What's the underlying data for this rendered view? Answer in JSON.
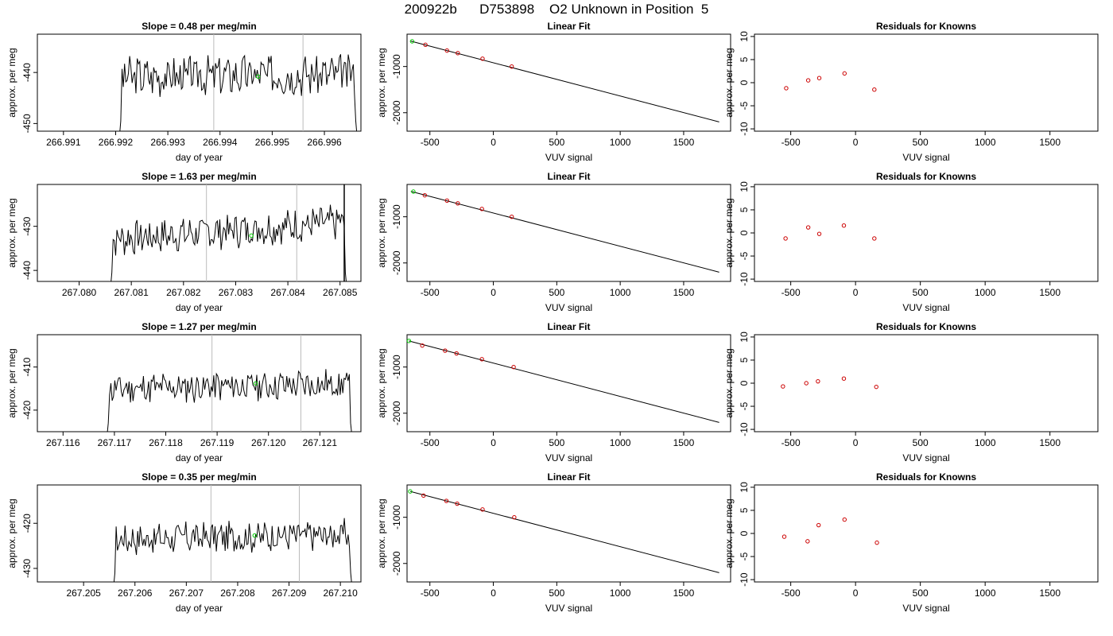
{
  "title": "200922b      D753898    O2 Unknown in Position  5",
  "colors": {
    "line": "#000000",
    "green": "#00cc00",
    "red": "#cc0000",
    "marker": "#bbbbbb"
  },
  "chart_data": [
    {
      "row": 0,
      "time_series": {
        "type": "line",
        "title": "Slope =  0.48  per meg/min",
        "xlabel": "day of year",
        "ylabel": "approx. per meg",
        "xlim": [
          266.9905,
          266.9967
        ],
        "ylim": [
          -451.5,
          -432.5
        ],
        "x_ticks": [
          "266.991",
          "266.992",
          "266.993",
          "266.994",
          "266.995",
          "266.996"
        ],
        "y_ticks": [
          "-450",
          "-440"
        ],
        "start": 266.99205,
        "end": 266.99665,
        "base": -440.5,
        "amp": 3.5,
        "trend": 0.5,
        "seed": 3,
        "markers": [
          266.99388,
          266.99559
        ],
        "mean_point": [
          266.99473,
          -440.8
        ]
      },
      "linear_fit": {
        "type": "scatter",
        "title": "Linear Fit",
        "xlabel": "VUV signal",
        "ylabel": "approx. per meg",
        "xlim": [
          -680,
          1870
        ],
        "ylim": [
          -2400,
          -300
        ],
        "x_ticks": [
          "-500",
          "0",
          "500",
          "1000",
          "1500"
        ],
        "y_ticks": [
          "-1000",
          "-2000"
        ],
        "line": [
          [
            -650,
            -450
          ],
          [
            1780,
            -2200
          ]
        ],
        "unknown": [
          -640,
          -455
        ],
        "knowns": [
          [
            -535,
            -530
          ],
          [
            -365,
            -655
          ],
          [
            -280,
            -710
          ],
          [
            -85,
            -830
          ],
          [
            145,
            -1000
          ]
        ]
      },
      "residuals": {
        "type": "scatter",
        "title": "Residuals for Knowns",
        "xlabel": "VUV signal",
        "ylabel": "approx. per meg",
        "xlim": [
          -780,
          1870
        ],
        "ylim": [
          -10.5,
          10.5
        ],
        "x_ticks": [
          "-500",
          "0",
          "500",
          "1000",
          "1500"
        ],
        "y_ticks": [
          "-10",
          "-5",
          "0",
          "5",
          "10"
        ],
        "points": [
          [
            -535,
            -1.2
          ],
          [
            -365,
            0.5
          ],
          [
            -280,
            1.0
          ],
          [
            -85,
            2.0
          ],
          [
            145,
            -1.5
          ]
        ]
      }
    },
    {
      "row": 1,
      "time_series": {
        "type": "line",
        "title": "Slope =  1.63  per meg/min",
        "xlabel": "day of year",
        "ylabel": "approx. per meg",
        "xlim": [
          267.0792,
          267.0854
        ],
        "ylim": [
          -442.5,
          -420.5
        ],
        "x_ticks": [
          "267.080",
          "267.081",
          "267.082",
          "267.083",
          "267.084",
          "267.085"
        ],
        "y_ticks": [
          "-440",
          "-430"
        ],
        "start": 267.08058,
        "end": 267.08515,
        "base": -431.0,
        "amp": 3.5,
        "trend": 4.0,
        "seed": 7,
        "markers": [
          267.08244,
          267.08417
        ],
        "mean_point": [
          267.0833,
          -432.1
        ],
        "spike": [
          267.08508,
          -420.5
        ]
      },
      "linear_fit": {
        "type": "scatter",
        "title": "Linear Fit",
        "xlabel": "VUV signal",
        "ylabel": "approx. per meg",
        "xlim": [
          -680,
          1870
        ],
        "ylim": [
          -2400,
          -300
        ],
        "x_ticks": [
          "-500",
          "0",
          "500",
          "1000",
          "1500"
        ],
        "y_ticks": [
          "-1000",
          "-2000"
        ],
        "line": [
          [
            -650,
            -450
          ],
          [
            1780,
            -2200
          ]
        ],
        "unknown": [
          -630,
          -455
        ],
        "knowns": [
          [
            -540,
            -535
          ],
          [
            -365,
            -650
          ],
          [
            -280,
            -710
          ],
          [
            -90,
            -830
          ],
          [
            145,
            -1000
          ]
        ]
      },
      "residuals": {
        "type": "scatter",
        "title": "Residuals for Knowns",
        "xlabel": "VUV signal",
        "ylabel": "approx. per meg",
        "xlim": [
          -780,
          1870
        ],
        "ylim": [
          -10.5,
          10.5
        ],
        "x_ticks": [
          "-500",
          "0",
          "500",
          "1000",
          "1500"
        ],
        "y_ticks": [
          "-10",
          "-5",
          "0",
          "5",
          "10"
        ],
        "points": [
          [
            -540,
            -1.2
          ],
          [
            -365,
            1.2
          ],
          [
            -280,
            -0.2
          ],
          [
            -90,
            1.6
          ],
          [
            145,
            -1.2
          ]
        ]
      }
    },
    {
      "row": 2,
      "time_series": {
        "type": "line",
        "title": "Slope =  1.27  per meg/min",
        "xlabel": "day of year",
        "ylabel": "approx. per meg",
        "xlim": [
          267.1155,
          267.1218
        ],
        "ylim": [
          -425,
          -402.5
        ],
        "x_ticks": [
          "267.116",
          "267.117",
          "267.118",
          "267.119",
          "267.120",
          "267.121"
        ],
        "y_ticks": [
          "-420",
          "-410"
        ],
        "start": 267.11683,
        "end": 267.12165,
        "base": -414.5,
        "amp": 3.2,
        "trend": 1.2,
        "seed": 11,
        "markers": [
          267.1189,
          267.12063
        ],
        "mean_point": [
          267.11975,
          -413.8
        ]
      },
      "linear_fit": {
        "type": "scatter",
        "title": "Linear Fit",
        "xlabel": "VUV signal",
        "ylabel": "approx. per meg",
        "xlim": [
          -680,
          1870
        ],
        "ylim": [
          -2400,
          -300
        ],
        "x_ticks": [
          "-500",
          "0",
          "500",
          "1000",
          "1500"
        ],
        "y_ticks": [
          "-1000",
          "-2000"
        ],
        "line": [
          [
            -665,
            -435
          ],
          [
            1780,
            -2200
          ]
        ],
        "unknown": [
          -665,
          -435
        ],
        "knowns": [
          [
            -560,
            -535
          ],
          [
            -380,
            -645
          ],
          [
            -290,
            -705
          ],
          [
            -90,
            -830
          ],
          [
            160,
            -1000
          ]
        ]
      },
      "residuals": {
        "type": "scatter",
        "title": "Residuals for Knowns",
        "xlabel": "VUV signal",
        "ylabel": "approx. per meg",
        "xlim": [
          -780,
          1870
        ],
        "ylim": [
          -10.5,
          10.5
        ],
        "x_ticks": [
          "-500",
          "0",
          "500",
          "1000",
          "1500"
        ],
        "y_ticks": [
          "-10",
          "-5",
          "0",
          "5",
          "10"
        ],
        "points": [
          [
            -560,
            -0.7
          ],
          [
            -380,
            0.0
          ],
          [
            -290,
            0.4
          ],
          [
            -90,
            1.0
          ],
          [
            160,
            -0.8
          ]
        ]
      }
    },
    {
      "row": 3,
      "time_series": {
        "type": "line",
        "title": "Slope =  0.35  per meg/min",
        "xlabel": "day of year",
        "ylabel": "approx. per meg",
        "xlim": [
          267.2041,
          267.2104
        ],
        "ylim": [
          -433,
          -411.5
        ],
        "x_ticks": [
          "267.205",
          "267.206",
          "267.207",
          "267.208",
          "267.209",
          "267.210"
        ],
        "y_ticks": [
          "-430",
          "-420"
        ],
        "start": 267.20556,
        "end": 267.21025,
        "base": -423.0,
        "amp": 3.0,
        "trend": 1.0,
        "seed": 17,
        "markers": [
          267.20748,
          267.2092
        ],
        "mean_point": [
          267.20833,
          -422.7
        ]
      },
      "linear_fit": {
        "type": "scatter",
        "title": "Linear Fit",
        "xlabel": "VUV signal",
        "ylabel": "approx. per meg",
        "xlim": [
          -680,
          1870
        ],
        "ylim": [
          -2400,
          -300
        ],
        "x_ticks": [
          "-500",
          "0",
          "500",
          "1000",
          "1500"
        ],
        "y_ticks": [
          "-1000",
          "-2000"
        ],
        "line": [
          [
            -655,
            -440
          ],
          [
            1780,
            -2200
          ]
        ],
        "unknown": [
          -655,
          -440
        ],
        "knowns": [
          [
            -550,
            -530
          ],
          [
            -370,
            -645
          ],
          [
            -285,
            -705
          ],
          [
            -85,
            -830
          ],
          [
            165,
            -1000
          ]
        ]
      },
      "residuals": {
        "type": "scatter",
        "title": "Residuals for Knowns",
        "xlabel": "VUV signal",
        "ylabel": "approx. per meg",
        "xlim": [
          -780,
          1870
        ],
        "ylim": [
          -10.5,
          10.5
        ],
        "x_ticks": [
          "-500",
          "0",
          "500",
          "1000",
          "1500"
        ],
        "y_ticks": [
          "-10",
          "-5",
          "0",
          "5",
          "10"
        ],
        "points": [
          [
            -550,
            -0.7
          ],
          [
            -370,
            -1.7
          ],
          [
            -285,
            1.8
          ],
          [
            -85,
            3.0
          ],
          [
            165,
            -2.0
          ]
        ]
      }
    }
  ]
}
